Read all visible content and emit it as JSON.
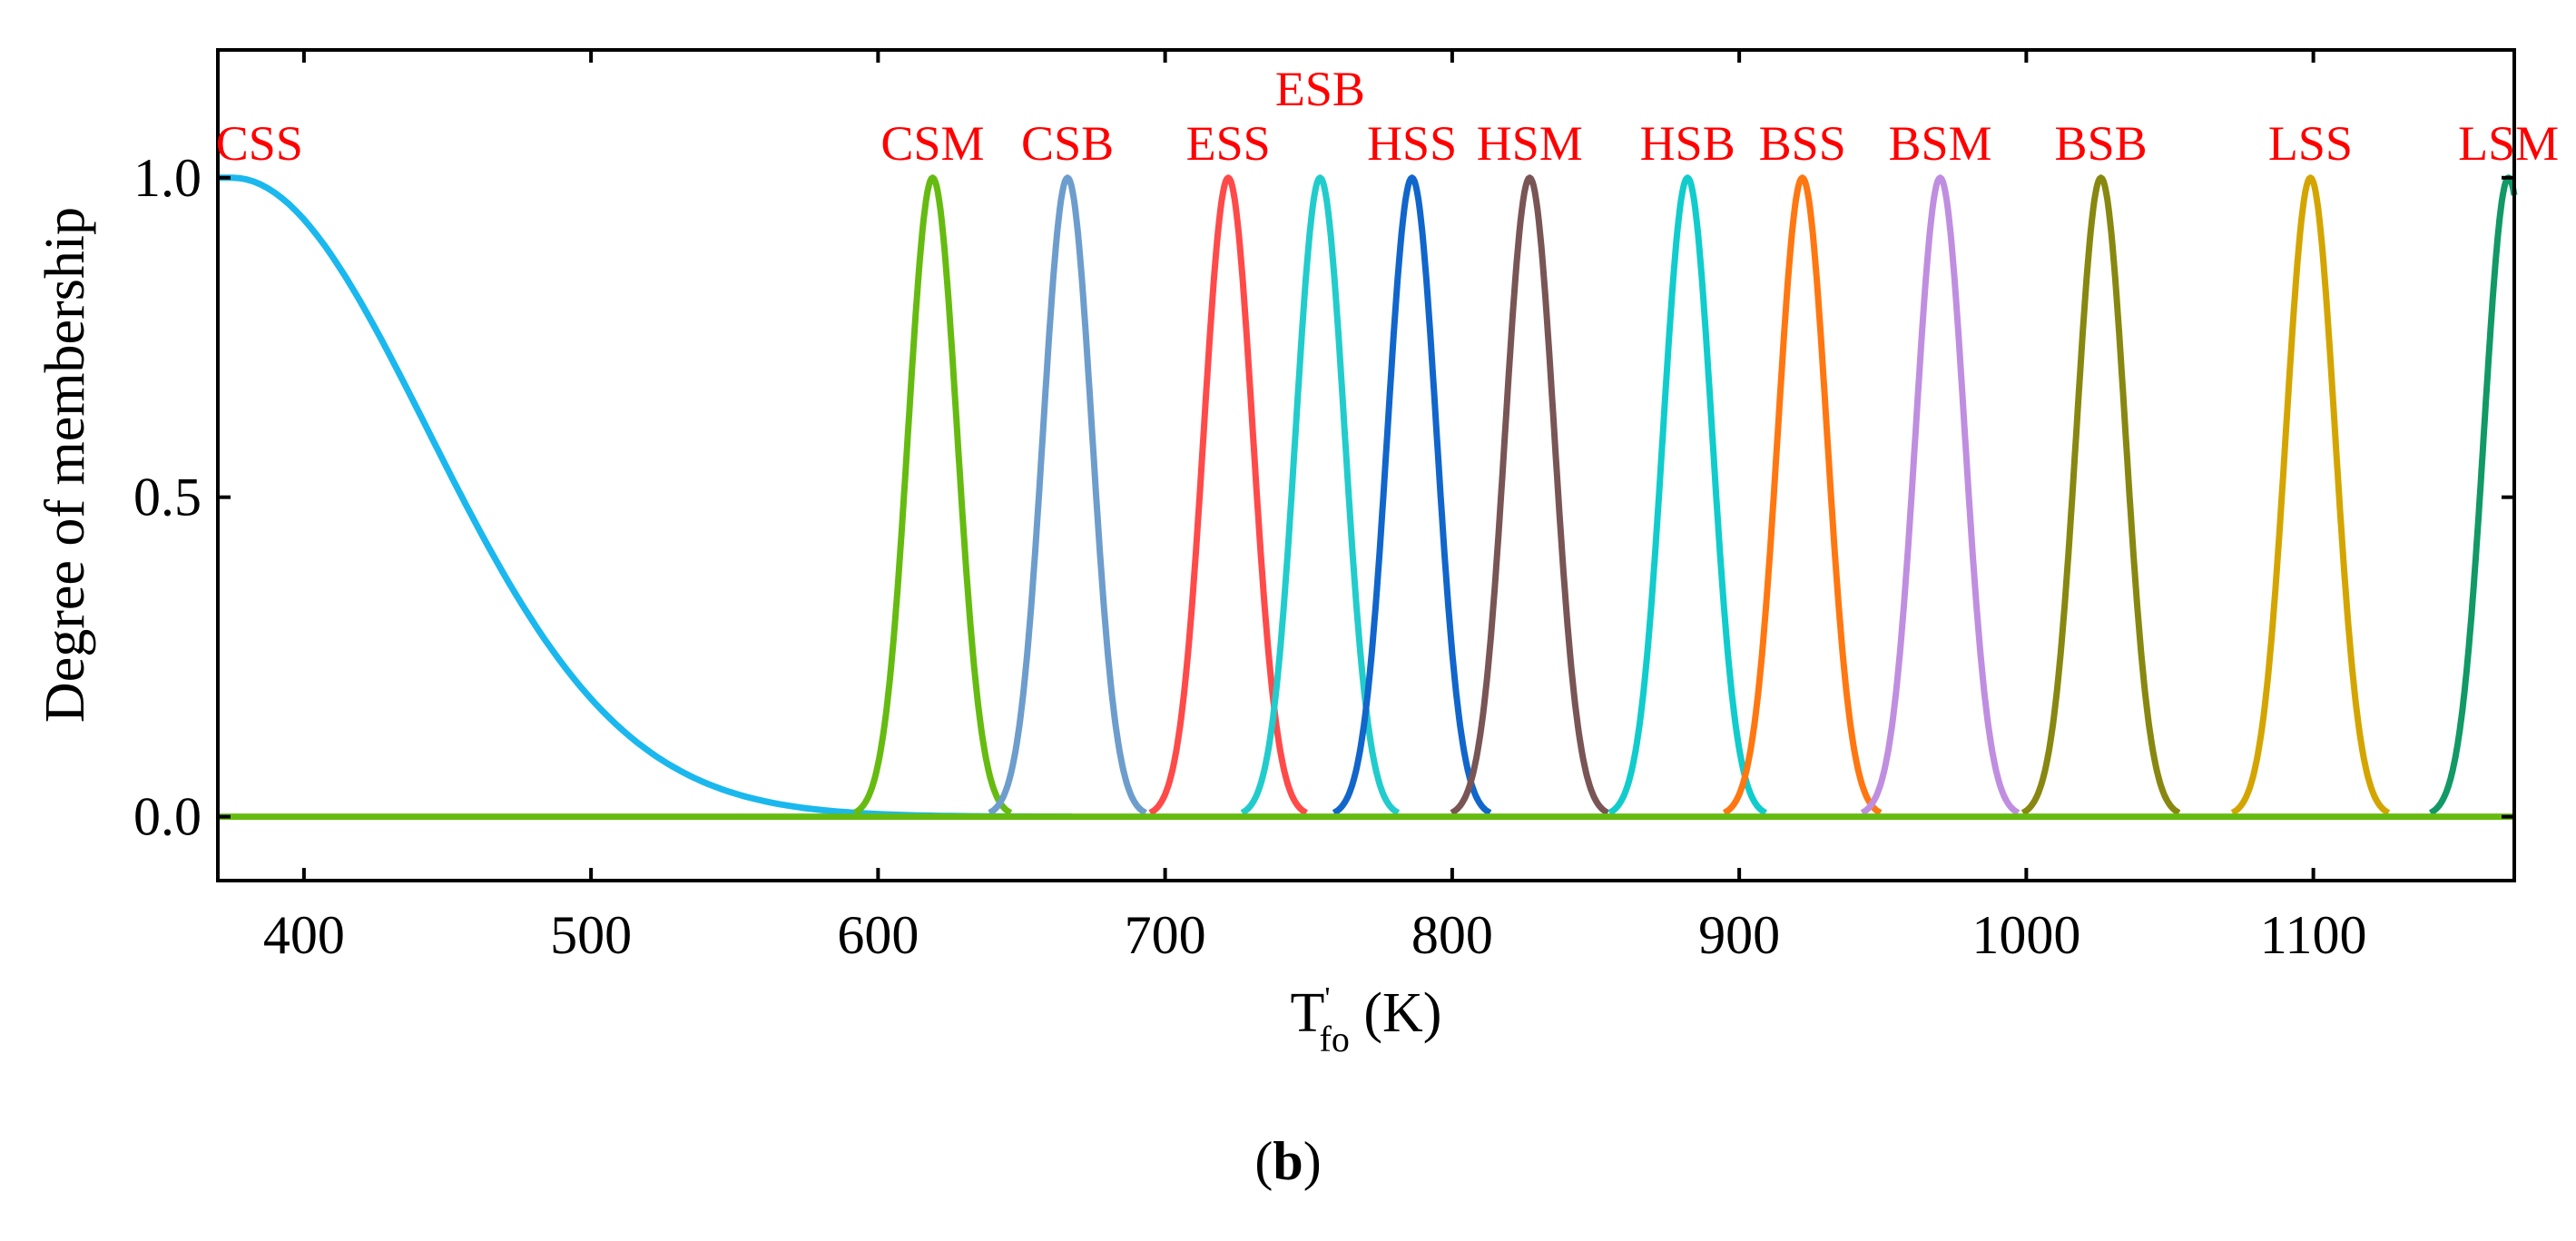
{
  "chart_data": {
    "type": "line",
    "title": "",
    "xlabel": {
      "base": "T",
      "prime": "'",
      "sub": "fo",
      "unit": " (K)"
    },
    "ylabel": "Degree of membership",
    "xlim": [
      370,
      1170
    ],
    "ylim": [
      -0.1,
      1.2
    ],
    "xticks": [
      400,
      500,
      600,
      700,
      800,
      900,
      1000,
      1100
    ],
    "yticks": [
      0.0,
      0.5,
      1.0
    ],
    "ytick_labels": [
      "0.0",
      "0.5",
      "1.0"
    ],
    "grid": false,
    "label_color": "#ff0000",
    "series": [
      {
        "name": "CSS",
        "type": "z-gaussian",
        "center": 375,
        "sigma": 68,
        "color": "#1ab8ee"
      },
      {
        "name": "CSM",
        "center": 619,
        "sigma": 8.5,
        "color": "#66bb11"
      },
      {
        "name": "CSB",
        "center": 666,
        "sigma": 8.5,
        "color": "#6d9dcc"
      },
      {
        "name": "ESS",
        "center": 722,
        "sigma": 8.5,
        "color": "#ff4a4a"
      },
      {
        "name": "ESB",
        "center": 754,
        "sigma": 8.5,
        "color": "#22cccc"
      },
      {
        "name": "HSS",
        "center": 786,
        "sigma": 8.5,
        "color": "#1166cc"
      },
      {
        "name": "HSM",
        "center": 827,
        "sigma": 8.5,
        "color": "#7a5555"
      },
      {
        "name": "HSB",
        "center": 882,
        "sigma": 8.5,
        "color": "#11cccc"
      },
      {
        "name": "BSS",
        "center": 922,
        "sigma": 8.5,
        "color": "#ff7711"
      },
      {
        "name": "BSM",
        "center": 970,
        "sigma": 8.5,
        "color": "#c08ee0"
      },
      {
        "name": "BSB",
        "center": 1026,
        "sigma": 8.5,
        "color": "#888811"
      },
      {
        "name": "LSS",
        "center": 1099,
        "sigma": 8.5,
        "color": "#d4a500"
      },
      {
        "name": "LSM",
        "center": 1168,
        "sigma": 8.5,
        "color": "#119966"
      }
    ],
    "baseline_color": "#66bb11"
  },
  "caption": {
    "open": "(",
    "letter": "b",
    "close": ")"
  }
}
